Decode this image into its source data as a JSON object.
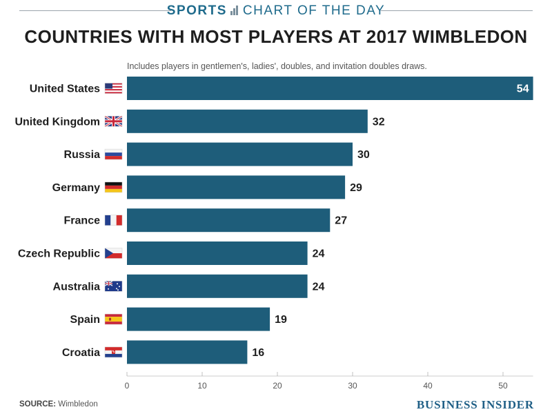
{
  "header": {
    "kicker_left": "SPORTS",
    "kicker_right": "CHART OF THE DAY",
    "title": "COUNTRIES WITH MOST PLAYERS AT 2017 WIMBLEDON",
    "subtitle": "Includes players in gentlemen's, ladies', doubles, and invitation doubles draws."
  },
  "footer": {
    "source_label": "SOURCE:",
    "source_value": " Wimbledon",
    "brand": "BUSINESS INSIDER"
  },
  "colors": {
    "bar": "#1e5d7a",
    "label_inside": "#ffffff",
    "label_outside": "#1e1e1e"
  },
  "chart_data": {
    "type": "bar",
    "orientation": "horizontal",
    "title": "COUNTRIES WITH MOST PLAYERS AT 2017 WIMBLEDON",
    "xlabel": "",
    "ylabel": "",
    "xlim": [
      0,
      54
    ],
    "xticks": [
      0,
      10,
      20,
      30,
      40,
      50
    ],
    "categories": [
      "United States",
      "United Kingdom",
      "Russia",
      "Germany",
      "France",
      "Czech Republic",
      "Australia",
      "Spain",
      "Croatia"
    ],
    "flags": [
      "us-flag-icon",
      "uk-flag-icon",
      "russia-flag-icon",
      "germany-flag-icon",
      "france-flag-icon",
      "czech-flag-icon",
      "australia-flag-icon",
      "spain-flag-icon",
      "croatia-flag-icon"
    ],
    "values": [
      54,
      32,
      30,
      29,
      27,
      24,
      24,
      19,
      16
    ],
    "grid": false,
    "legend": "none"
  }
}
